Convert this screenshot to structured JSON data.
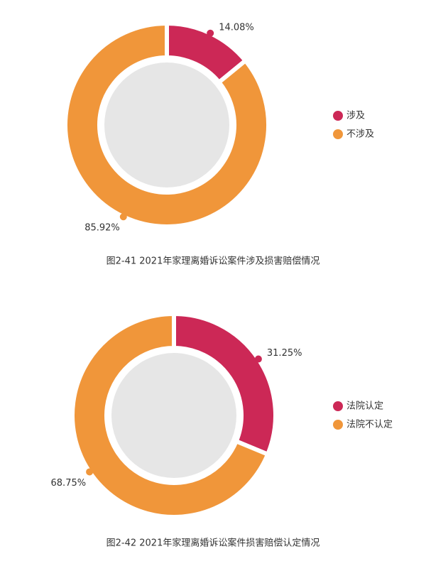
{
  "chart_data": [
    {
      "type": "donut",
      "title": "图2-41  2021年家理离婚诉讼案件涉及损害赔偿情况",
      "categories": [
        "涉及",
        "不涉及"
      ],
      "values": [
        14.08,
        85.92
      ],
      "value_labels": [
        "14.08%",
        "85.92%"
      ],
      "colors": [
        "#cc2856",
        "#f0963a"
      ],
      "legend": "right"
    },
    {
      "type": "donut",
      "title": "图2-42  2021年家理离婚诉讼案件损害赔偿认定情况",
      "categories": [
        "法院认定",
        "法院不认定"
      ],
      "values": [
        31.25,
        68.75
      ],
      "value_labels": [
        "31.25%",
        "68.75%"
      ],
      "colors": [
        "#cc2856",
        "#f0963a"
      ],
      "legend": "right"
    }
  ]
}
